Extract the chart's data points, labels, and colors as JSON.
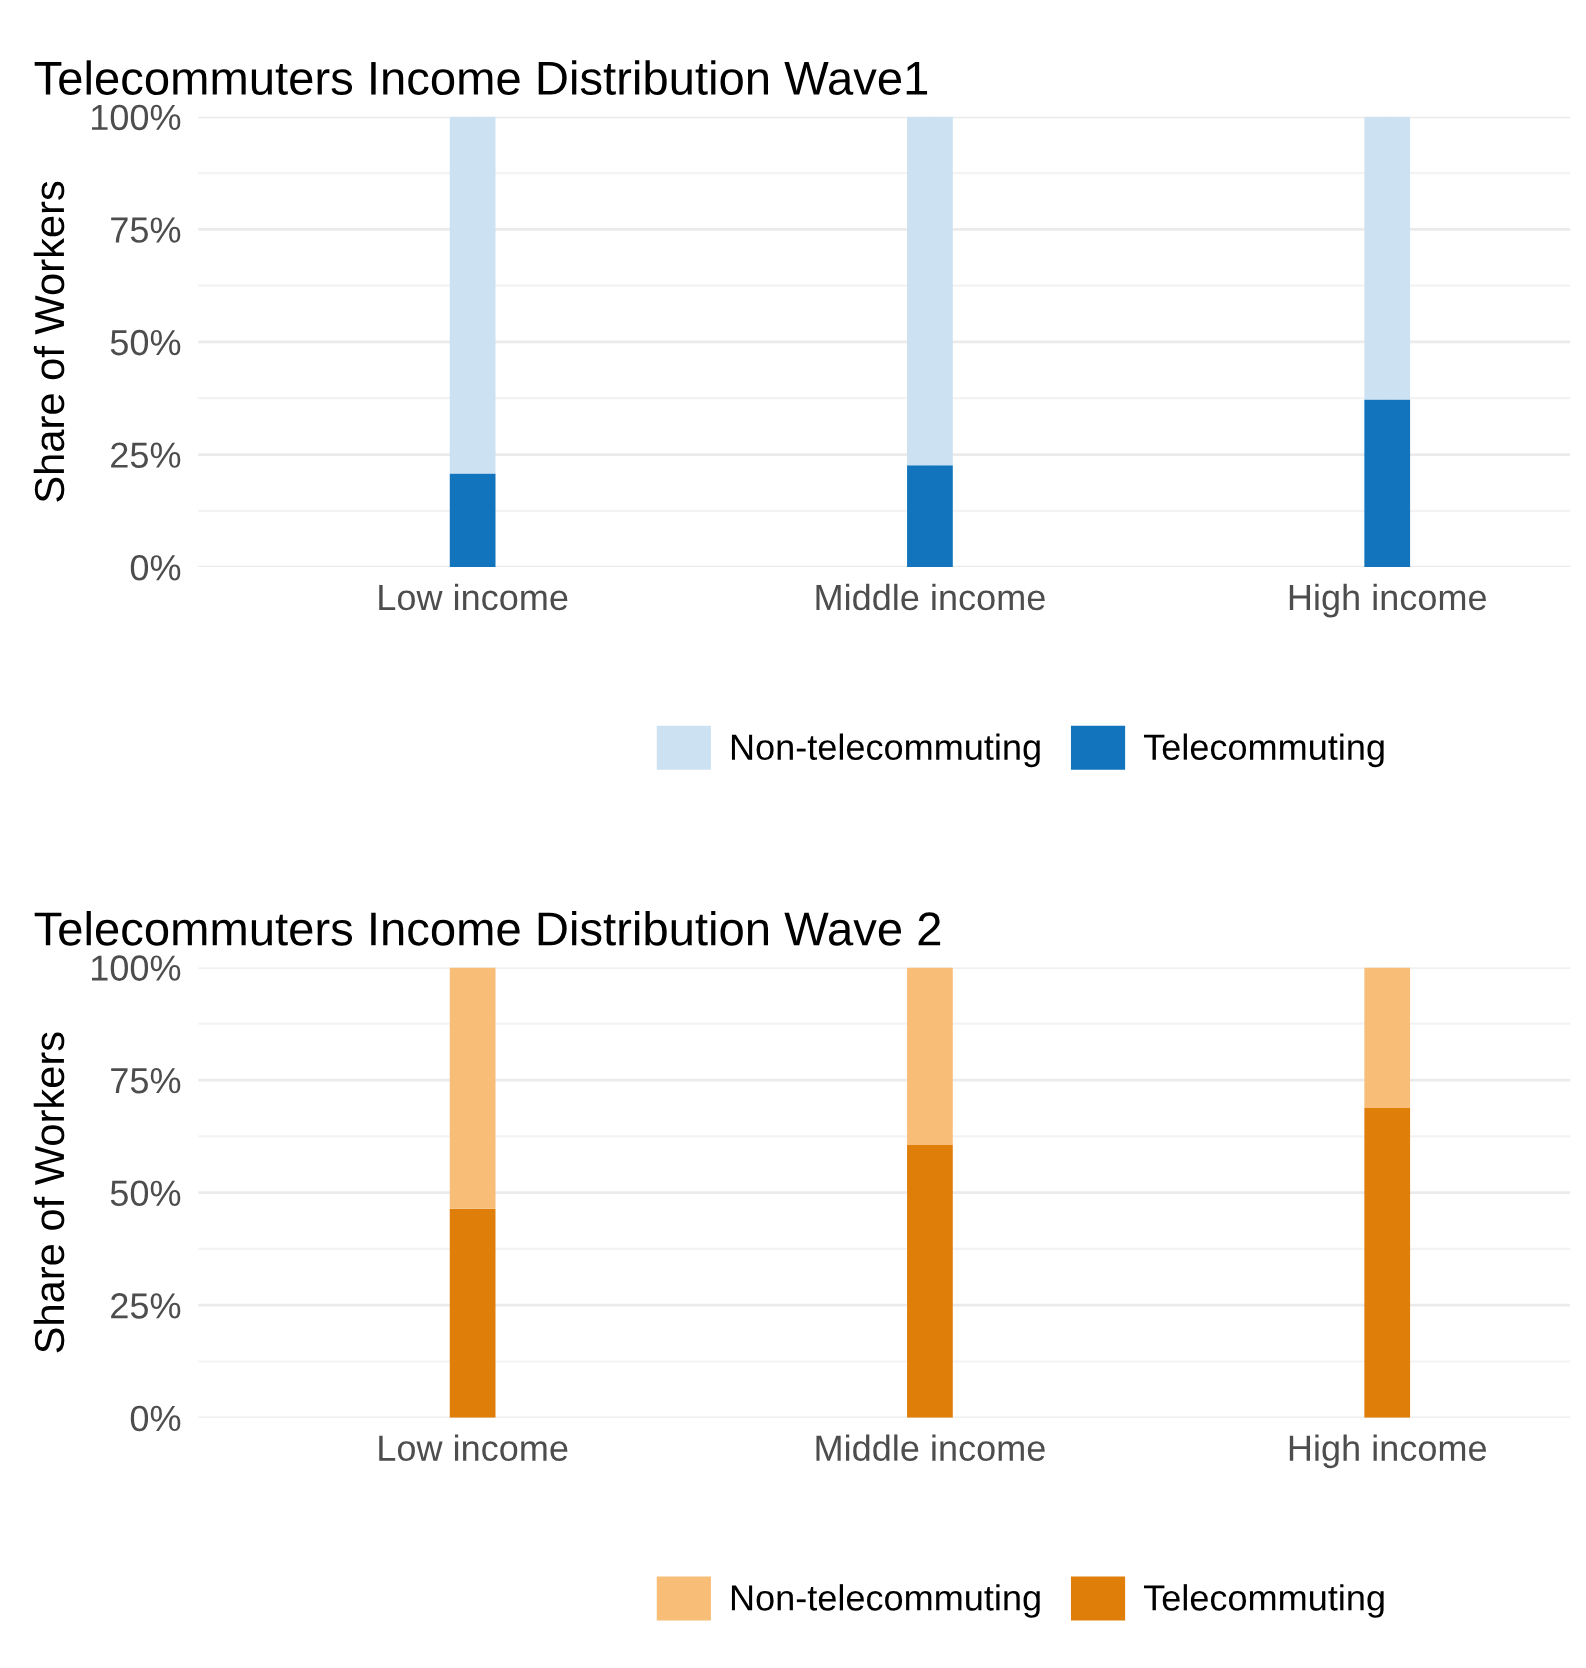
{
  "chart_data": [
    {
      "type": "bar",
      "title": "Telecommuters Income Distribution Wave1",
      "ylabel": "Share of Workers",
      "categories": [
        "Low income",
        "Middle income",
        "High income"
      ],
      "stacked": true,
      "series": [
        {
          "name": "Telecommuting",
          "color": "#1174bc",
          "values": [
            20.8,
            22.6,
            37.2
          ]
        },
        {
          "name": "Non-telecommuting",
          "color": "#cce1f1",
          "values": [
            79.2,
            77.4,
            62.8
          ]
        }
      ],
      "ylim": [
        0,
        100
      ],
      "yticks": [
        {
          "value": 0,
          "label": "0%"
        },
        {
          "value": 25,
          "label": "25%"
        },
        {
          "value": 50,
          "label": "50%"
        },
        {
          "value": 75,
          "label": "75%"
        },
        {
          "value": 100,
          "label": "100%"
        }
      ],
      "grid": true,
      "legend": "bottom"
    },
    {
      "type": "bar",
      "title": "Telecommuters Income Distribution Wave 2",
      "ylabel": "Share of Workers",
      "categories": [
        "Low income",
        "Middle income",
        "High income"
      ],
      "stacked": true,
      "series": [
        {
          "name": "Telecommuting",
          "color": "#e07e0a",
          "values": [
            46.4,
            60.6,
            68.8
          ]
        },
        {
          "name": "Non-telecommuting",
          "color": "#f8bd77",
          "values": [
            53.6,
            39.4,
            31.2
          ]
        }
      ],
      "ylim": [
        0,
        100
      ],
      "yticks": [
        {
          "value": 0,
          "label": "0%"
        },
        {
          "value": 25,
          "label": "25%"
        },
        {
          "value": 50,
          "label": "50%"
        },
        {
          "value": 75,
          "label": "75%"
        },
        {
          "value": 100,
          "label": "100%"
        }
      ],
      "grid": true,
      "legend": "bottom"
    }
  ]
}
